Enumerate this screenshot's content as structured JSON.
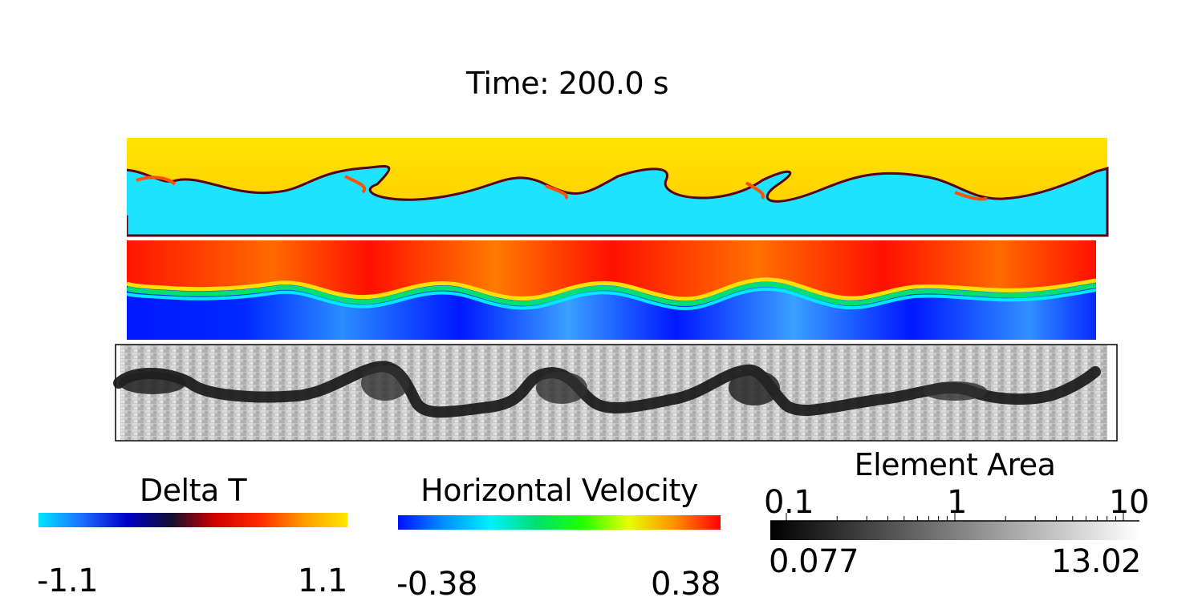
{
  "title": "Time: 200.0 s",
  "panels": [
    {
      "field": "Delta T"
    },
    {
      "field": "Horizontal Velocity"
    },
    {
      "field": "Element Area"
    }
  ],
  "colorbars": {
    "delta_t": {
      "title": "Delta T",
      "min_label": "-1.1",
      "max_label": "1.1",
      "min": -1.1,
      "max": 1.1,
      "colors": [
        "#00e5ff",
        "#1e6cff",
        "#0000c8",
        "#101030",
        "#d00000",
        "#ff2a00",
        "#ff9a00",
        "#ffe800"
      ]
    },
    "horizontal_velocity": {
      "title": "Horizontal Velocity",
      "min_label": "-0.38",
      "max_label": "0.38",
      "min": -0.38,
      "max": 0.38,
      "colors": [
        "#0010ff",
        "#0090ff",
        "#00f0ff",
        "#00e070",
        "#20ff00",
        "#e8ff00",
        "#ff9000",
        "#ff0000"
      ]
    },
    "element_area": {
      "title": "Element Area",
      "scale": "log",
      "ticks": [
        "0.1",
        "1",
        "10"
      ],
      "min_label": "0.077",
      "max_label": "13.02",
      "min": 0.077,
      "max": 13.02,
      "colors": [
        "#000000",
        "#ffffff"
      ]
    }
  }
}
